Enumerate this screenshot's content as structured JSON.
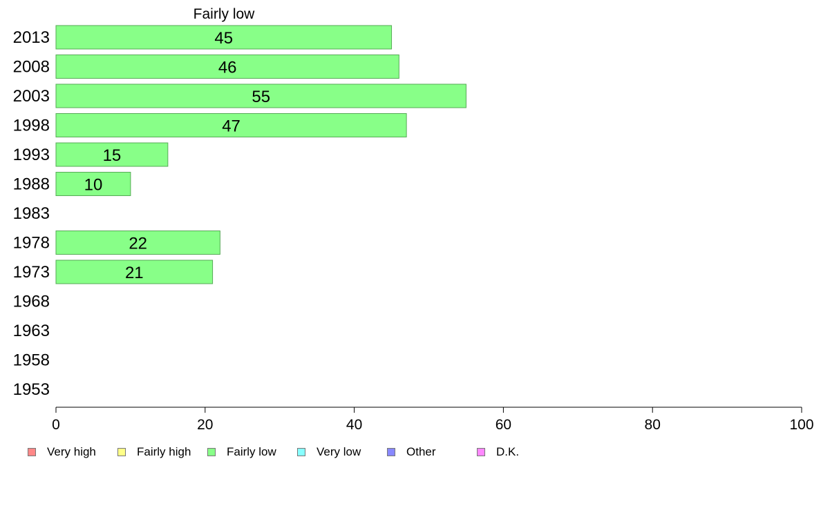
{
  "chart_data": {
    "type": "bar",
    "orientation": "horizontal",
    "title": "Fairly low",
    "categories": [
      "2013",
      "2008",
      "2003",
      "1998",
      "1993",
      "1988",
      "1983",
      "1978",
      "1973",
      "1968",
      "1963",
      "1958",
      "1953"
    ],
    "series": [
      {
        "name": "Fairly low",
        "values": [
          45,
          46,
          55,
          47,
          15,
          10,
          null,
          22,
          21,
          null,
          null,
          null,
          null
        ]
      }
    ],
    "data_labels": [
      "45",
      "46",
      "55",
      "47",
      "15",
      "10",
      "",
      "22",
      "21",
      "",
      "",
      "",
      ""
    ],
    "xlim": [
      0,
      100
    ],
    "xticks": [
      "0",
      "20",
      "40",
      "60",
      "80",
      "100"
    ],
    "xlabel": "",
    "ylabel": "",
    "grid": false,
    "legend_position": "bottom",
    "bar_color": "#88ff88",
    "bar_border_color": "#55aa55"
  },
  "legend": {
    "items": [
      {
        "label": "Very high",
        "color": "#ff8888"
      },
      {
        "label": "Fairly high",
        "color": "#ffff88"
      },
      {
        "label": "Fairly low",
        "color": "#88ff88"
      },
      {
        "label": "Very low",
        "color": "#88ffff"
      },
      {
        "label": "Other",
        "color": "#8888ff"
      },
      {
        "label": "D.K.",
        "color": "#ff88ff"
      }
    ]
  }
}
